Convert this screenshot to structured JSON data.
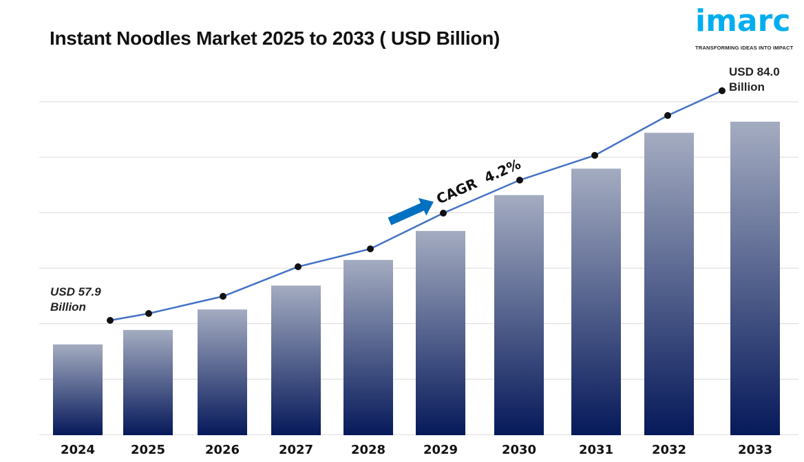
{
  "chart_data": {
    "type": "bar",
    "title": "Instant Noodles Market 2025 to 2033 ( USD Billion)",
    "categories": [
      "2024",
      "2025",
      "2026",
      "2027",
      "2028",
      "2029",
      "2030",
      "2031",
      "2032",
      "2033"
    ],
    "values": [
      57.9,
      59.6,
      62.0,
      64.8,
      67.8,
      71.2,
      75.4,
      78.5,
      82.7,
      84.0
    ],
    "line_overlay": true,
    "grid": true,
    "ylim": [
      45,
      90
    ],
    "annotations": {
      "start": "USD 57.9 Billion",
      "start_line1": "USD 57.9",
      "start_line2": "Billion",
      "end_line1": "USD 84.0",
      "end_line2": "Billion",
      "cagr": "CAGR  4.2%"
    },
    "colors": {
      "bar_top": "#a4acc1",
      "bar_bottom": "#06195a",
      "line": "#4472c4",
      "marker": "#111111",
      "arrow": "#0070c0",
      "grid": "#d9d9d9"
    }
  },
  "logo": {
    "word": "imarc",
    "tagline": "TRANSFORMING IDEAS INTO IMPACT",
    "color": "#00aeef"
  }
}
